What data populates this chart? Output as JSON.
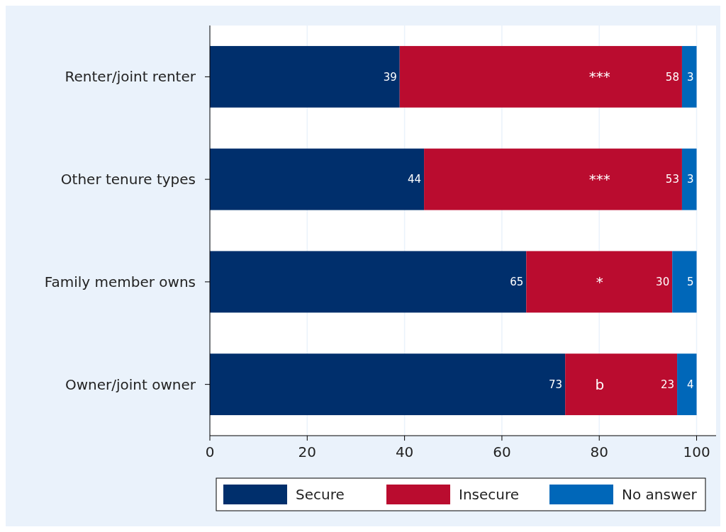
{
  "chart_data": {
    "type": "bar",
    "orientation": "horizontal",
    "stacked": true,
    "categories": [
      "Renter/joint renter",
      "Other tenure types",
      "Family member owns",
      "Owner/joint owner"
    ],
    "series": [
      {
        "name": "Secure",
        "color": "#002f6c",
        "values": [
          39,
          44,
          65,
          73
        ]
      },
      {
        "name": "Insecure",
        "color": "#ba0c2f",
        "values": [
          58,
          53,
          30,
          23
        ]
      },
      {
        "name": "No answer",
        "color": "#0067b9",
        "values": [
          3,
          3,
          5,
          4
        ]
      }
    ],
    "xlim": [
      0,
      104
    ],
    "xticks": [
      0,
      20,
      40,
      60,
      80,
      100
    ],
    "grid": "x",
    "legend": "bottom",
    "data_labels": true,
    "annotations": [
      "***",
      "***",
      "*",
      "b"
    ]
  }
}
